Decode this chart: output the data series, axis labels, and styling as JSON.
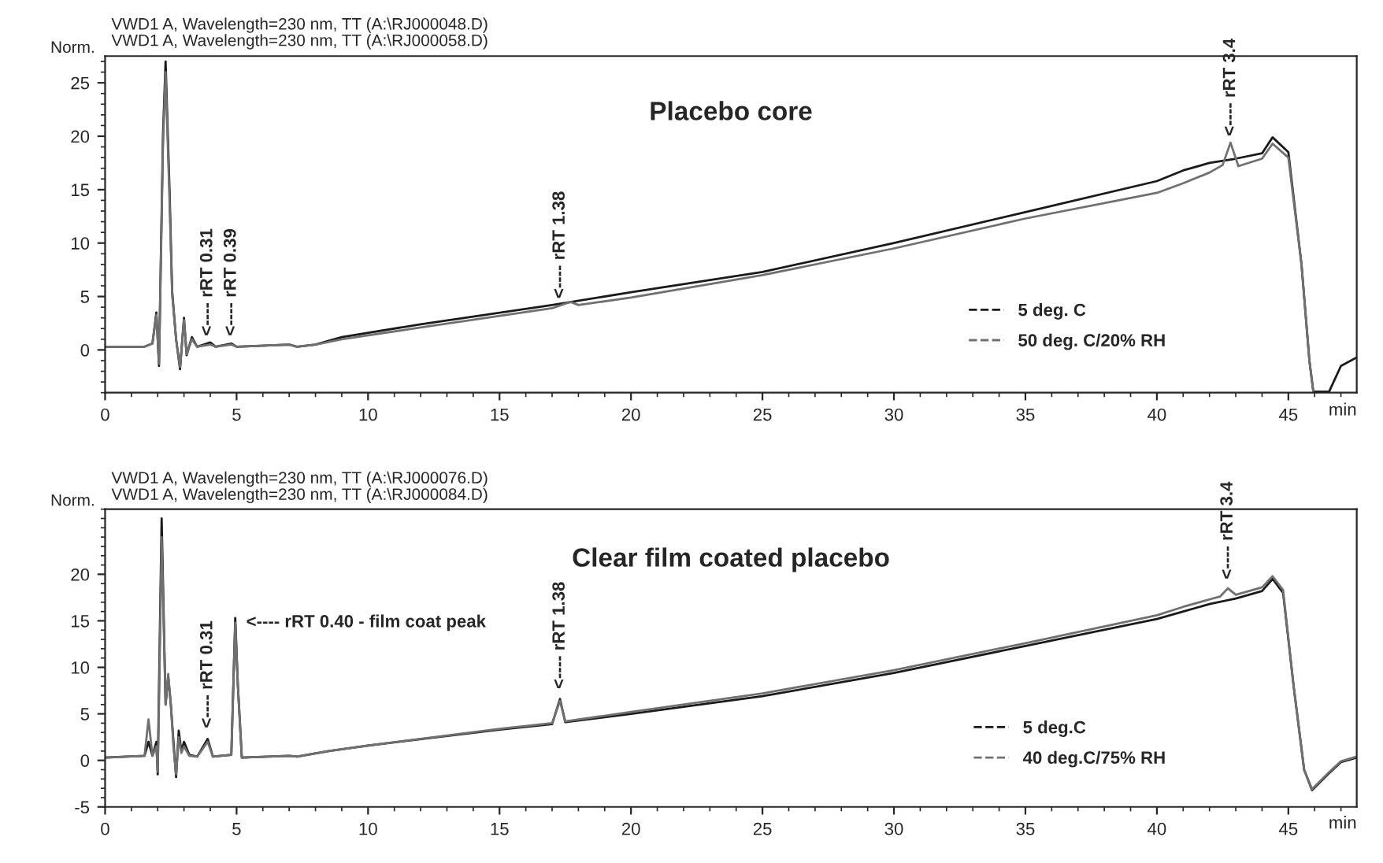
{
  "chart_data": [
    {
      "type": "line",
      "title": "Placebo core",
      "subtitle": "VWD1 A, Wavelength=230 nm, TT (A:\\RJ000048.D)\nVWD1 A, Wavelength=230 nm, TT (A:\\RJ000058.D)",
      "xlabel": "min",
      "ylabel": "Norm.",
      "series": [
        {
          "name": "5 deg. C",
          "color": "#1a1a1a",
          "x": [
            0,
            1.5,
            1.8,
            1.95,
            2.05,
            2.2,
            2.3,
            2.45,
            2.55,
            2.7,
            2.85,
            3.0,
            3.1,
            3.3,
            3.5,
            4.0,
            4.2,
            4.8,
            5.0,
            7.0,
            7.3,
            8,
            9,
            12,
            17,
            20,
            25,
            30,
            35,
            40,
            41,
            42,
            43,
            44,
            44.4,
            45,
            45.5,
            45.8,
            45.95,
            46.55,
            47,
            47.6
          ],
          "values": [
            0.3,
            0.3,
            0.6,
            3.5,
            -1.5,
            20,
            27,
            15,
            5.5,
            1,
            -1.8,
            3,
            -0.5,
            1.2,
            0.3,
            0.7,
            0.3,
            0.6,
            0.3,
            0.5,
            0.3,
            0.5,
            1.2,
            2.4,
            4.2,
            5.4,
            7.3,
            10.0,
            12.9,
            15.8,
            16.8,
            17.5,
            17.9,
            18.4,
            19.9,
            18.5,
            8,
            -1,
            -3.9,
            -3.9,
            -1.5,
            -0.7
          ]
        },
        {
          "name": "50 deg. C/20% RH",
          "color": "#707070",
          "x": [
            0,
            1.5,
            1.8,
            1.95,
            2.05,
            2.2,
            2.3,
            2.45,
            2.55,
            2.7,
            2.85,
            3.0,
            3.1,
            3.3,
            3.5,
            4.0,
            4.2,
            4.8,
            5.0,
            7.0,
            7.3,
            8,
            9,
            12,
            17,
            17.7,
            18,
            20,
            25,
            30,
            35,
            40,
            41,
            42,
            42.5,
            42.8,
            43.1,
            44,
            44.4,
            45,
            45.5,
            45.8,
            45.95
          ],
          "values": [
            0.3,
            0.3,
            0.6,
            3.3,
            -1.3,
            19,
            26,
            14,
            5.2,
            1,
            -1.6,
            2.8,
            -0.4,
            1.0,
            0.3,
            0.5,
            0.3,
            0.5,
            0.3,
            0.5,
            0.3,
            0.5,
            1.0,
            2.1,
            3.9,
            4.5,
            4.2,
            4.9,
            7.0,
            9.5,
            12.3,
            14.7,
            15.6,
            16.6,
            17.3,
            19.4,
            17.2,
            17.9,
            19.3,
            18.0,
            8,
            -1,
            -3.9
          ]
        }
      ],
      "xlim": [
        0,
        47.6
      ],
      "ylim": [
        -4,
        27.5
      ],
      "xticks": [
        0,
        5,
        10,
        15,
        20,
        25,
        30,
        35,
        40,
        45
      ],
      "yticks": [
        0,
        5,
        10,
        15,
        20,
        25
      ],
      "annotations": [
        {
          "text": "<---- rRT 0.31",
          "x": 3.9,
          "y": 0.9
        },
        {
          "text": "<---- rRT 0.39",
          "x": 4.8,
          "y": 0.9
        },
        {
          "text": "<---- rRT 1.38",
          "x": 17.3,
          "y": 4.4
        },
        {
          "text": "<---- rRT 3.4",
          "x": 42.8,
          "y": 19.6
        }
      ],
      "legend": "lower right",
      "grid": false,
      "marker": "none",
      "line_style": "solid"
    },
    {
      "type": "line",
      "title": "Clear film coated placebo",
      "subtitle": "VWD1 A, Wavelength=230 nm, TT (A:\\RJ000076.D)\nVWD1 A, Wavelength=230 nm, TT (A:\\RJ000084.D)",
      "xlabel": "min",
      "ylabel": "Norm.",
      "series": [
        {
          "name": "5 deg.C",
          "color": "#1a1a1a",
          "x": [
            0,
            1.5,
            1.65,
            1.8,
            1.95,
            2.0,
            2.05,
            2.15,
            2.3,
            2.4,
            2.5,
            2.6,
            2.7,
            2.8,
            2.9,
            3.0,
            3.2,
            3.5,
            3.9,
            4.1,
            4.8,
            4.95,
            5.05,
            5.2,
            7,
            7.3,
            8.5,
            10,
            15,
            17,
            17.3,
            17.5,
            20,
            25,
            30,
            35,
            40,
            41,
            42,
            43,
            44,
            44.4,
            44.8,
            45.2,
            45.6,
            45.9,
            46.5,
            47,
            47.6
          ],
          "values": [
            0.3,
            0.5,
            2.0,
            0.5,
            2,
            -1.5,
            8,
            26,
            6,
            9,
            6,
            2,
            -1.8,
            3.2,
            1,
            2,
            0.6,
            0.4,
            2.3,
            0.4,
            0.6,
            15.3,
            8,
            0.3,
            0.5,
            0.4,
            1,
            1.6,
            3.3,
            3.9,
            6.6,
            4.1,
            5.0,
            6.9,
            9.4,
            12.3,
            15.2,
            16.0,
            16.8,
            17.4,
            18.2,
            19.5,
            18,
            8,
            -1,
            -3.2,
            -1.5,
            -0.2,
            0.3
          ]
        },
        {
          "name": "40 deg.C/75% RH",
          "color": "#707070",
          "x": [
            0,
            1.5,
            1.65,
            1.8,
            1.95,
            2.0,
            2.05,
            2.15,
            2.3,
            2.4,
            2.5,
            2.6,
            2.7,
            2.8,
            2.9,
            3.0,
            3.2,
            3.5,
            3.9,
            4.1,
            4.8,
            4.95,
            5.05,
            5.2,
            7,
            7.3,
            8.5,
            10,
            15,
            17,
            17.3,
            17.5,
            20,
            25,
            30,
            35,
            40,
            41,
            42,
            42.4,
            42.7,
            43,
            44,
            44.4,
            44.8,
            45.2,
            45.6,
            45.9,
            46.5,
            47,
            47.6
          ],
          "values": [
            0.3,
            0.5,
            4.4,
            0.5,
            1.5,
            -1.2,
            6,
            24,
            6,
            9.3,
            6,
            1.5,
            -1.5,
            2.5,
            0.8,
            1.5,
            0.5,
            0.4,
            2.0,
            0.4,
            0.6,
            14.8,
            8,
            0.3,
            0.5,
            0.4,
            1,
            1.6,
            3.4,
            4.0,
            6.4,
            4.2,
            5.2,
            7.2,
            9.7,
            12.6,
            15.6,
            16.5,
            17.3,
            17.6,
            18.5,
            17.8,
            18.6,
            19.8,
            18.3,
            8,
            -1,
            -3.1,
            -1.4,
            -0.1,
            0.4
          ]
        }
      ],
      "xlim": [
        0,
        47.6
      ],
      "ylim": [
        -5,
        27
      ],
      "xticks": [
        0,
        5,
        10,
        15,
        20,
        25,
        30,
        35,
        40,
        45
      ],
      "yticks": [
        -5,
        0,
        5,
        10,
        15,
        20
      ],
      "annotations": [
        {
          "text": "<---- rRT 0.31",
          "x": 3.9,
          "y": 3.0
        },
        {
          "text": "<---- rRT 0.40 - film coat peak",
          "x": 5.2,
          "y": 14.8
        },
        {
          "text": "<---- rRT 1.38",
          "x": 17.3,
          "y": 7.2
        },
        {
          "text": "<---- rRT 3.4",
          "x": 42.7,
          "y": 19.0
        }
      ],
      "legend": "lower right",
      "grid": false,
      "marker": "none",
      "line_style": "solid"
    }
  ]
}
